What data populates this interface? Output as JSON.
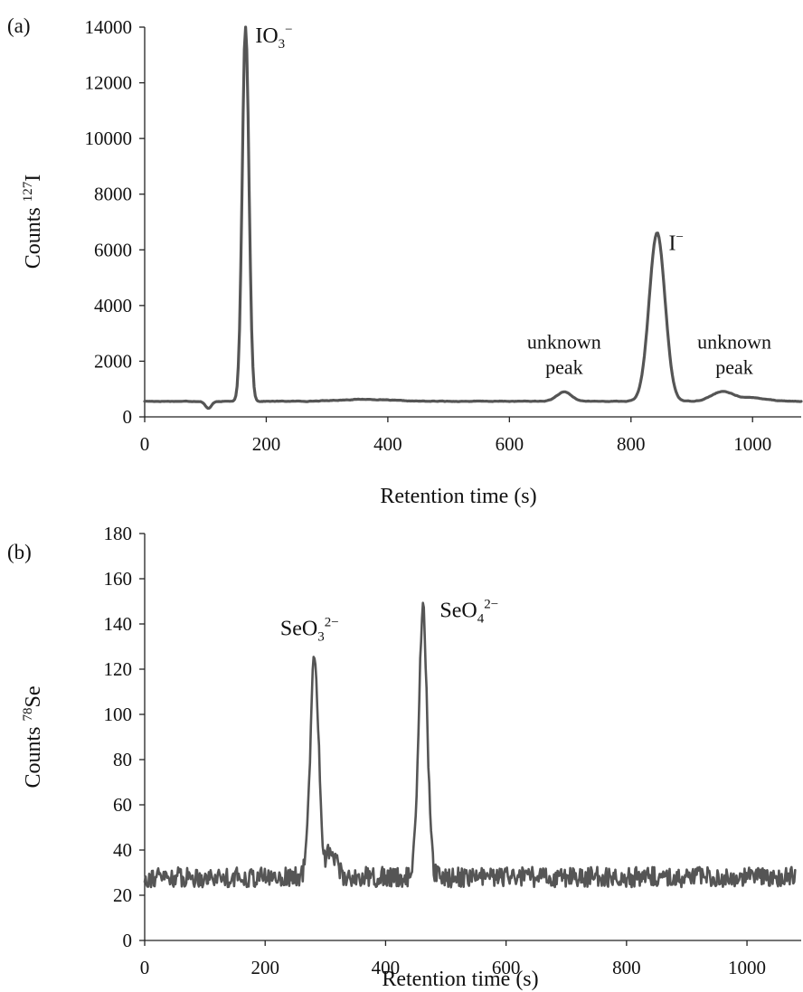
{
  "chart_data": [
    {
      "type": "line",
      "panel_label": "(a)",
      "xlabel": "Retention time (s)",
      "ylabel_main": "Counts ",
      "ylabel_sup": "127",
      "ylabel_tail": "I",
      "xlim": [
        0,
        1080
      ],
      "ylim": [
        0,
        14000
      ],
      "xticks": [
        0,
        200,
        400,
        600,
        800,
        1000
      ],
      "yticks": [
        0,
        2000,
        4000,
        6000,
        8000,
        10000,
        12000,
        14000
      ],
      "grid": false,
      "series": [
        {
          "baseline": 560,
          "features": [
            {
              "center": 105,
              "height": -260,
              "width": 5
            },
            {
              "center": 166,
              "height": 13500,
              "width": 5.5
            },
            {
              "center": 360,
              "height": 70,
              "width": 40
            },
            {
              "center": 690,
              "height": 330,
              "width": 12
            },
            {
              "center": 843,
              "height": 6050,
              "width": 13
            },
            {
              "center": 950,
              "height": 330,
              "width": 18
            },
            {
              "center": 1000,
              "height": 120,
              "width": 25
            }
          ],
          "noise": 25,
          "x": [
            0,
            95,
            105,
            150,
            160,
            166,
            172,
            185,
            360,
            600,
            690,
            800,
            843,
            880,
            950,
            1080
          ],
          "y": [
            560,
            545,
            300,
            590,
            5000,
            14000,
            6000,
            620,
            630,
            560,
            890,
            600,
            6610,
            700,
            890,
            560
          ]
        }
      ],
      "annotations": [
        {
          "base": "IO",
          "sub": "3",
          "sup": "−",
          "x": 182,
          "y": 13450
        },
        {
          "base": "I",
          "sup": "−",
          "x": 862,
          "y": 6000
        },
        {
          "text_line1": "unknown",
          "text_line2": "peak",
          "x": 690,
          "y1": 2450,
          "y2": 1550
        },
        {
          "text_line1": "unknown",
          "text_line2": "peak",
          "x": 970,
          "y1": 2450,
          "y2": 1550
        }
      ]
    },
    {
      "type": "line",
      "panel_label": "(b)",
      "xlabel": "Retention time (s)",
      "ylabel_main": "Counts ",
      "ylabel_sup": "78",
      "ylabel_tail": "Se",
      "xlim": [
        0,
        1090
      ],
      "ylim": [
        0,
        180
      ],
      "xticks": [
        0,
        200,
        400,
        600,
        800,
        1000
      ],
      "yticks": [
        0,
        20,
        40,
        60,
        80,
        100,
        120,
        140,
        160,
        180
      ],
      "grid": false,
      "series": [
        {
          "baseline": 28,
          "features": [
            {
              "center": 282,
              "height": 97,
              "width": 7
            },
            {
              "center": 310,
              "height": 12,
              "width": 8
            },
            {
              "center": 462,
              "height": 118,
              "width": 7
            }
          ],
          "noise": 4.5,
          "x": [
            0,
            260,
            282,
            300,
            440,
            462,
            480,
            1080
          ],
          "y": [
            28,
            28,
            126,
            40,
            30,
            147,
            35,
            28
          ]
        }
      ],
      "annotations": [
        {
          "base": "SeO",
          "sub": "3",
          "sup": "2−",
          "x": 225,
          "y": 135
        },
        {
          "base": "SeO",
          "sub": "4",
          "sup": "2−",
          "x": 490,
          "y": 143
        }
      ]
    }
  ]
}
